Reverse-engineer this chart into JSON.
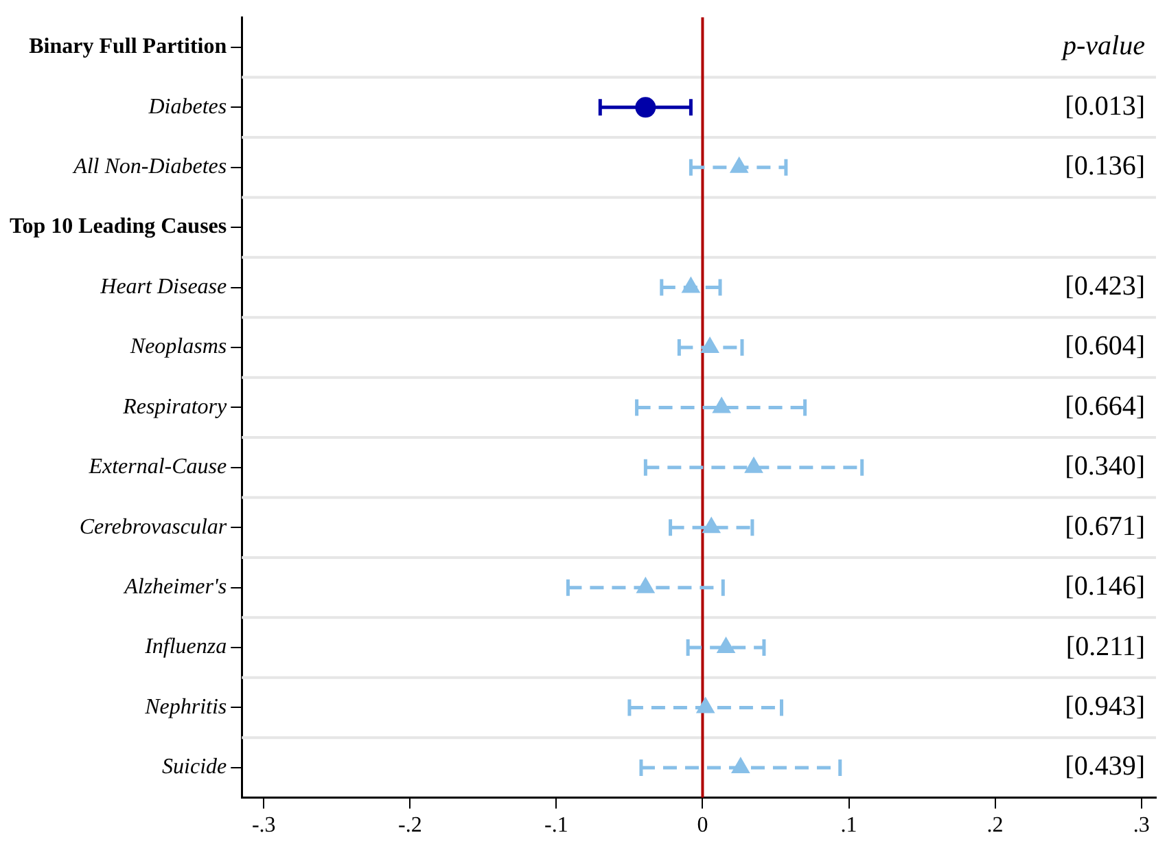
{
  "chart_data": {
    "type": "scatter",
    "orientation": "horizontal",
    "categories": [
      "Binary Full Partition",
      "Diabetes",
      "All Non-Diabetes",
      "Top 10 Leading Causes",
      "Heart Disease",
      "Neoplasms",
      "Respiratory",
      "External-Cause",
      "Cerebrovascular",
      "Alzheimer's",
      "Influenza",
      "Nephritis",
      "Suicide"
    ],
    "series": [
      {
        "color": "#0000a8",
        "marker": "circle",
        "line_style": "solid",
        "values": [
          null,
          -0.039,
          null,
          null,
          null,
          null,
          null,
          null,
          null,
          null,
          null,
          null,
          null
        ],
        "errors": [
          null,
          [
            -0.07,
            -0.008
          ],
          null,
          null,
          null,
          null,
          null,
          null,
          null,
          null,
          null,
          null,
          null
        ]
      },
      {
        "color": "#87bfe8",
        "marker": "triangle",
        "line_style": "dashed",
        "values": [
          null,
          null,
          0.025,
          null,
          -0.008,
          0.005,
          0.013,
          0.035,
          0.006,
          -0.039,
          0.016,
          0.002,
          0.026
        ],
        "errors": [
          null,
          null,
          [
            -0.008,
            0.057
          ],
          null,
          [
            -0.028,
            0.012
          ],
          [
            -0.016,
            0.027
          ],
          [
            -0.045,
            0.07
          ],
          [
            -0.039,
            0.109
          ],
          [
            -0.022,
            0.034
          ],
          [
            -0.092,
            0.014
          ],
          [
            -0.01,
            0.042
          ],
          [
            -0.05,
            0.054
          ],
          [
            -0.042,
            0.094
          ]
        ]
      }
    ],
    "xlim": [
      -0.315,
      0.31
    ],
    "xticks": [
      {
        "value": -0.3,
        "label": "-.3"
      },
      {
        "value": -0.2,
        "label": "-.2"
      },
      {
        "value": -0.1,
        "label": "-.1"
      },
      0,
      {
        "value": 0.1,
        "label": ".1"
      },
      {
        "value": 0.2,
        "label": ".2"
      },
      {
        "value": 0.3,
        "label": ".3"
      }
    ],
    "ref_lines": [
      {
        "axis": "x",
        "value": 0,
        "color": "#b00000"
      }
    ],
    "annotations": [
      "p-value",
      "[0.013]",
      "[0.136]",
      "[0.423]",
      "[0.604]",
      "[0.664]",
      "[0.340]",
      "[0.671]",
      "[0.146]",
      "[0.211]",
      "[0.943]",
      "[0.439]"
    ],
    "grid": "y",
    "legend": false
  }
}
